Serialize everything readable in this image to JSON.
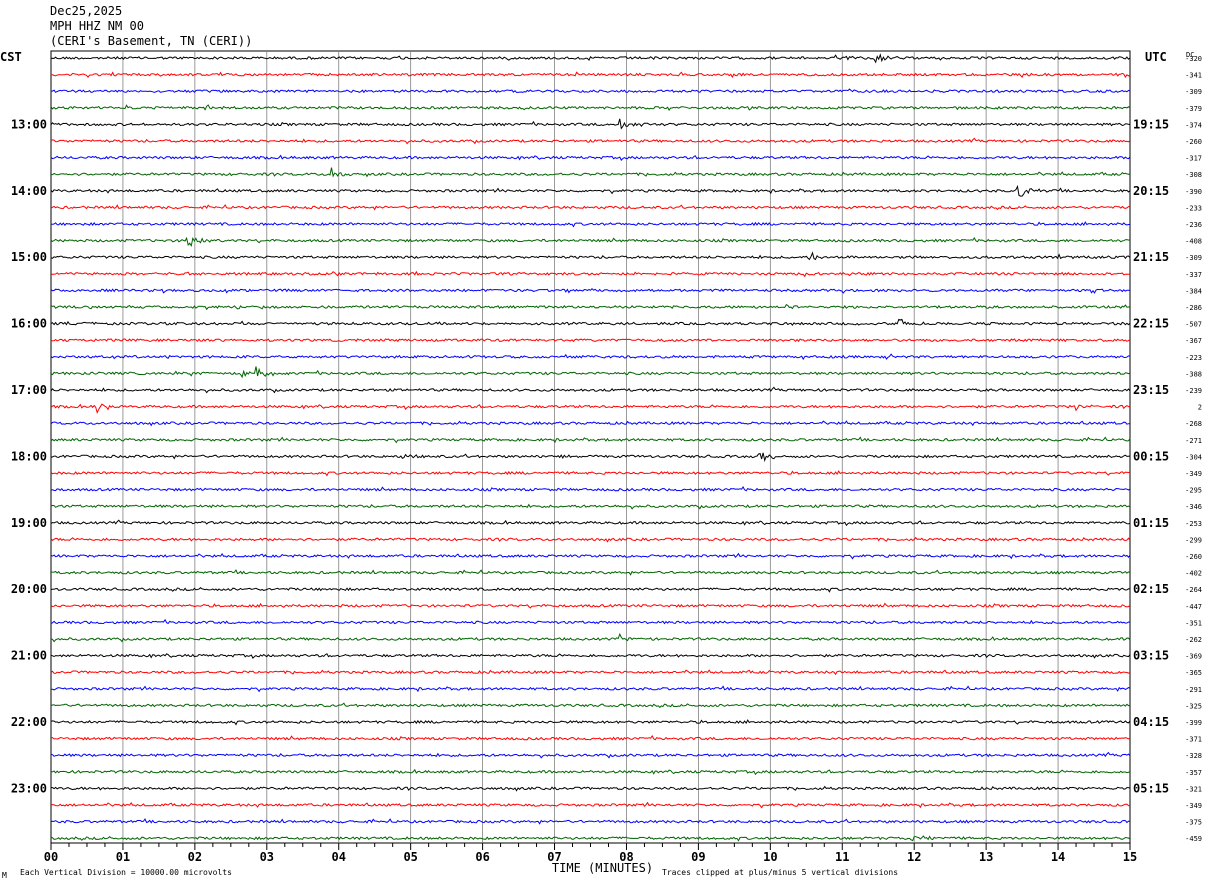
{
  "header": {
    "date": "Dec25,2025",
    "station": "MPH HHZ NM 00",
    "location": "(CERI's Basement, TN (CERI))"
  },
  "left_axis_label": "CST",
  "right_axis_label": "UTC",
  "dc_label": "DC",
  "footer": {
    "scale_note": "Each Vertical Division = 10000.00 microvolts",
    "clip_note": "Traces clipped at plus/minus 5 vertical divisions",
    "corner_mark": "M"
  },
  "chart_data": {
    "type": "line",
    "title": "",
    "xlabel": "TIME (MINUTES)",
    "ylabel": "",
    "xlim": [
      0,
      15
    ],
    "x_ticks": [
      "00",
      "01",
      "02",
      "03",
      "04",
      "05",
      "06",
      "07",
      "08",
      "09",
      "10",
      "11",
      "12",
      "13",
      "14",
      "15"
    ],
    "grid": "vertical",
    "trace_colors": [
      "#000000",
      "#ff0000",
      "#0000ff",
      "#006400"
    ],
    "trace_count": 48,
    "left_hour_labels": [
      {
        "trace": 4,
        "label": "13:00"
      },
      {
        "trace": 8,
        "label": "14:00"
      },
      {
        "trace": 12,
        "label": "15:00"
      },
      {
        "trace": 16,
        "label": "16:00"
      },
      {
        "trace": 20,
        "label": "17:00"
      },
      {
        "trace": 24,
        "label": "18:00"
      },
      {
        "trace": 28,
        "label": "19:00"
      },
      {
        "trace": 32,
        "label": "20:00"
      },
      {
        "trace": 36,
        "label": "21:00"
      },
      {
        "trace": 40,
        "label": "22:00"
      },
      {
        "trace": 44,
        "label": "23:00"
      }
    ],
    "right_hour_labels": [
      {
        "trace": 4,
        "label": "19:15"
      },
      {
        "trace": 8,
        "label": "20:15"
      },
      {
        "trace": 12,
        "label": "21:15"
      },
      {
        "trace": 16,
        "label": "22:15"
      },
      {
        "trace": 20,
        "label": "23:15"
      },
      {
        "trace": 24,
        "label": "00:15"
      },
      {
        "trace": 28,
        "label": "01:15"
      },
      {
        "trace": 32,
        "label": "02:15"
      },
      {
        "trace": 36,
        "label": "03:15"
      },
      {
        "trace": 40,
        "label": "04:15"
      },
      {
        "trace": 44,
        "label": "05:15"
      }
    ],
    "dc_offsets": [
      "-320",
      "-341",
      "-309",
      "-379",
      "-374",
      "-260",
      "-317",
      "-308",
      "-390",
      "-233",
      "-236",
      "-408",
      "-309",
      "-337",
      "-384",
      "-286",
      "-507",
      "-367",
      "-223",
      "-388",
      "-239",
      "2",
      "-268",
      "-271",
      "-304",
      "-349",
      "-295",
      "-346",
      "-253",
      "-299",
      "-260",
      "-402",
      "-264",
      "-447",
      "-351",
      "-262",
      "-369",
      "-365",
      "-291",
      "-325",
      "-399",
      "-371",
      "-328",
      "-357",
      "-321",
      "-349",
      "-375",
      "-459"
    ],
    "events": [
      {
        "trace": 0,
        "minute": 10.9,
        "amp": 5
      },
      {
        "trace": 0,
        "minute": 11.45,
        "amp": 7
      },
      {
        "trace": 3,
        "minute": 2.15,
        "amp": 4
      },
      {
        "trace": 4,
        "minute": 7.9,
        "amp": 8
      },
      {
        "trace": 7,
        "minute": 3.9,
        "amp": 6
      },
      {
        "trace": 8,
        "minute": 13.45,
        "amp": 9
      },
      {
        "trace": 11,
        "minute": 1.9,
        "amp": 7
      },
      {
        "trace": 12,
        "minute": 10.55,
        "amp": 5
      },
      {
        "trace": 15,
        "minute": 10.2,
        "amp": 3
      },
      {
        "trace": 16,
        "minute": 11.8,
        "amp": 6
      },
      {
        "trace": 19,
        "minute": 2.6,
        "amp": 5
      },
      {
        "trace": 19,
        "minute": 2.85,
        "amp": 8
      },
      {
        "trace": 21,
        "minute": 0.65,
        "amp": 8
      },
      {
        "trace": 21,
        "minute": 14.25,
        "amp": 5
      },
      {
        "trace": 24,
        "minute": 9.85,
        "amp": 7
      },
      {
        "trace": 24,
        "minute": 7.1,
        "amp": 3
      },
      {
        "trace": 24,
        "minute": 4.9,
        "amp": 3
      },
      {
        "trace": 35,
        "minute": 7.9,
        "amp": 3
      },
      {
        "trace": 47,
        "minute": 11.95,
        "amp": 5
      }
    ]
  }
}
